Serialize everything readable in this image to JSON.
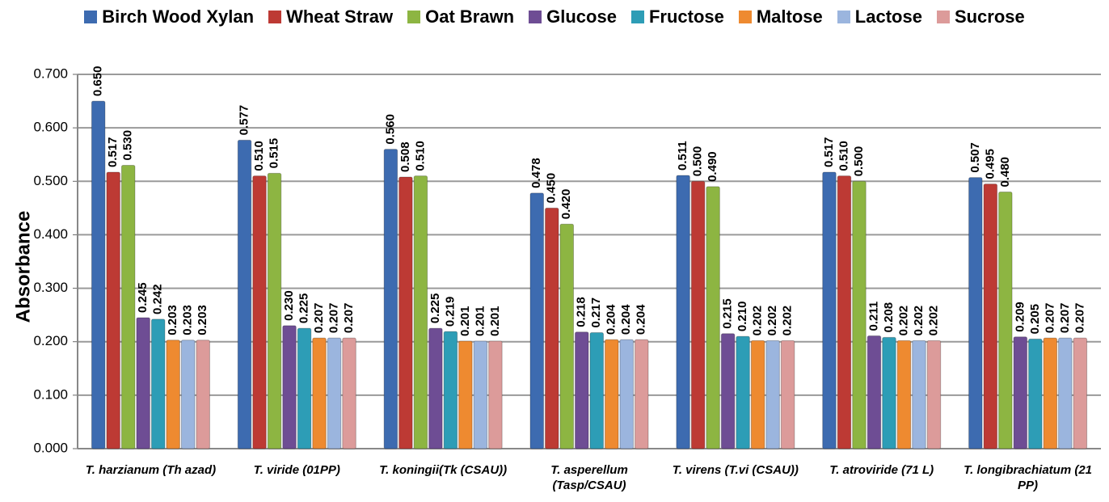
{
  "chart_data": {
    "type": "bar",
    "y_label": "Absorbance",
    "categories": [
      "T. harzianum (Th azad)",
      "T. viride (01PP)",
      "T. koningii(Tk (CSAU))",
      "T. asperellum (Tasp/CSAU)",
      "T. virens (T.vi (CSAU))",
      "T. atroviride (71 L)",
      "T. longibrachiatum (21 PP)"
    ],
    "series": [
      {
        "name": "Birch Wood Xylan",
        "color": "#3d6bb0",
        "values": [
          0.65,
          0.577,
          0.56,
          0.478,
          0.511,
          0.517,
          0.507
        ],
        "value_labels": [
          "0.650",
          "0.577",
          "0.560",
          "0.478",
          "0.511",
          "0.517",
          "0.507"
        ]
      },
      {
        "name": "Wheat Straw",
        "color": "#bd3a34",
        "values": [
          0.517,
          0.51,
          0.508,
          0.45,
          0.5,
          0.51,
          0.495
        ],
        "value_labels": [
          "0.517",
          "0.510",
          "0.508",
          "0.450",
          "0.500",
          "0.510",
          "0.495"
        ]
      },
      {
        "name": "Oat Brawn",
        "color": "#8db542",
        "values": [
          0.53,
          0.515,
          0.51,
          0.42,
          0.49,
          0.5,
          0.48
        ],
        "value_labels": [
          "0.530",
          "0.515",
          "0.510",
          "0.420",
          "0.490",
          "0.500",
          "0.480"
        ]
      },
      {
        "name": "Glucose",
        "color": "#6e4d94",
        "values": [
          0.245,
          0.23,
          0.225,
          0.218,
          0.215,
          0.211,
          0.209
        ],
        "value_labels": [
          "0.245",
          "0.230",
          "0.225",
          "0.218",
          "0.215",
          "0.211",
          "0.209"
        ]
      },
      {
        "name": "Fructose",
        "color": "#2d9db6",
        "values": [
          0.242,
          0.225,
          0.219,
          0.217,
          0.21,
          0.208,
          0.205
        ],
        "value_labels": [
          "0.242",
          "0.225",
          "0.219",
          "0.217",
          "0.210",
          "0.208",
          "0.205"
        ]
      },
      {
        "name": "Maltose",
        "color": "#ee8a30",
        "values": [
          0.203,
          0.207,
          0.201,
          0.204,
          0.202,
          0.202,
          0.207
        ],
        "value_labels": [
          "0.203",
          "0.207",
          "0.201",
          "0.204",
          "0.202",
          "0.202",
          "0.207"
        ]
      },
      {
        "name": "Lactose",
        "color": "#9bb5de",
        "values": [
          0.203,
          0.207,
          0.201,
          0.204,
          0.202,
          0.202,
          0.207
        ],
        "value_labels": [
          "0.203",
          "0.207",
          "0.201",
          "0.204",
          "0.202",
          "0.202",
          "0.207"
        ]
      },
      {
        "name": "Sucrose",
        "color": "#dc9b9a",
        "values": [
          0.203,
          0.207,
          0.201,
          0.204,
          0.202,
          0.202,
          0.207
        ],
        "value_labels": [
          "0.203",
          "0.207",
          "0.201",
          "0.204",
          "0.202",
          "0.202",
          "0.207"
        ]
      }
    ],
    "ylim": [
      0,
      0.7
    ],
    "yticks": [
      {
        "value": 0,
        "label": "0.000"
      },
      {
        "value": 0.1,
        "label": "0.100"
      },
      {
        "value": 0.2,
        "label": "0.200"
      },
      {
        "value": 0.3,
        "label": "0.300"
      },
      {
        "value": 0.4,
        "label": "0.400"
      },
      {
        "value": 0.5,
        "label": "0.500"
      },
      {
        "value": 0.6,
        "label": "0.600"
      },
      {
        "value": 0.7,
        "label": "0.700"
      }
    ],
    "grid": true
  }
}
